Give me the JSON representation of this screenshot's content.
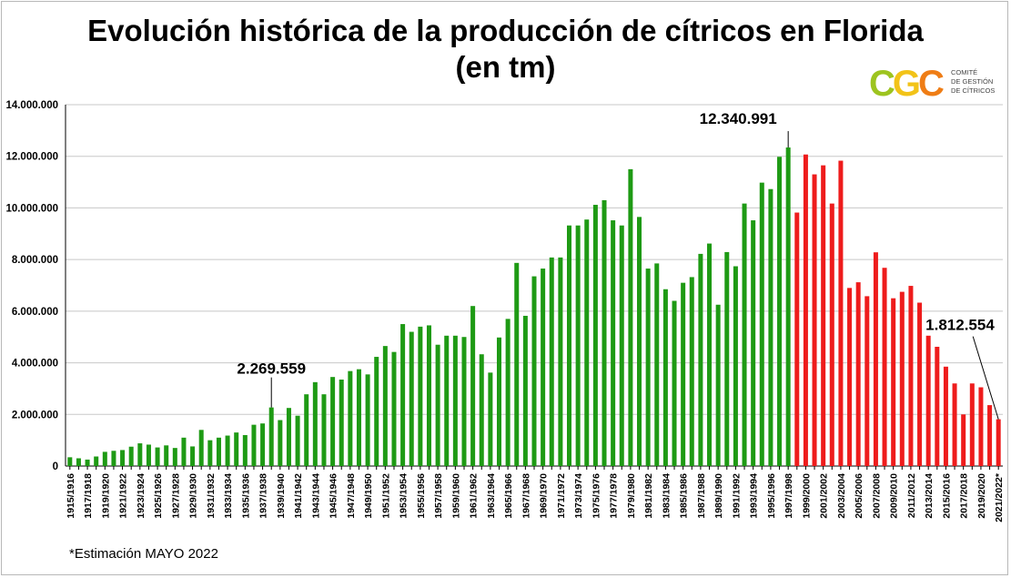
{
  "title_line1": "Evolución histórica de la producción de cítricos en Florida",
  "title_line2": "(en tm)",
  "logo": {
    "mark": [
      "C",
      "G",
      "C"
    ],
    "lines": [
      "COMITÉ",
      "DE GESTIÓN",
      "DE CÍTRICOS"
    ]
  },
  "footnote": "*Estimación MAYO 2022",
  "colors": {
    "green": "#1e9a14",
    "red": "#ee1c1c",
    "grid": "#c8c8c8"
  },
  "chart_data": {
    "type": "bar",
    "title": "Evolución histórica de la producción de cítricos en Florida (en tm)",
    "xlabel": "",
    "ylabel": "",
    "ylim": [
      0,
      14000000
    ],
    "yticks": [
      0,
      2000000,
      4000000,
      6000000,
      8000000,
      10000000,
      12000000,
      14000000
    ],
    "ytick_labels": [
      "0",
      "2.000.000",
      "4.000.000",
      "6.000.000",
      "8.000.000",
      "10.000.000",
      "12.000.000",
      "14.000.000"
    ],
    "grid": true,
    "start_year": 1915,
    "categories": [
      "1915/1916",
      "1916/1917",
      "1917/1918",
      "1918/1919",
      "1919/1920",
      "1920/1921",
      "1921/1922",
      "1922/1923",
      "1923/1924",
      "1924/1925",
      "1925/1926",
      "1926/1927",
      "1927/1928",
      "1928/1929",
      "1929/1930",
      "1930/1931",
      "1931/1932",
      "1932/1933",
      "1933/1934",
      "1934/1935",
      "1935/1936",
      "1936/1937",
      "1937/1938",
      "1938/1939",
      "1939/1940",
      "1940/1941",
      "1941/1942",
      "1942/1943",
      "1943/1944",
      "1944/1945",
      "1945/1946",
      "1946/1947",
      "1947/1948",
      "1948/1949",
      "1949/1950",
      "1950/1951",
      "1951/1952",
      "1952/1953",
      "1953/1954",
      "1954/1955",
      "1955/1956",
      "1956/1957",
      "1957/1958",
      "1958/1959",
      "1959/1960",
      "1960/1961",
      "1961/1962",
      "1962/1963",
      "1963/1964",
      "1964/1965",
      "1965/1966",
      "1966/1967",
      "1967/1968",
      "1968/1969",
      "1969/1970",
      "1970/1971",
      "1971/1972",
      "1972/1973",
      "1973/1974",
      "1974/1975",
      "1975/1976",
      "1976/1977",
      "1977/1978",
      "1978/1979",
      "1979/1980",
      "1980/1981",
      "1981/1982",
      "1982/1983",
      "1983/1984",
      "1984/1985",
      "1985/1986",
      "1986/1987",
      "1987/1988",
      "1988/1989",
      "1989/1990",
      "1990/1991",
      "1991/1992",
      "1992/1993",
      "1993/1994",
      "1994/1995",
      "1995/1996",
      "1996/1997",
      "1997/1998",
      "1998/1999",
      "1999/2000",
      "2000/2001",
      "2001/2002",
      "2002/2003",
      "2003/2004",
      "2004/2005",
      "2005/2006",
      "2006/2007",
      "2007/2008",
      "2008/2009",
      "2009/2010",
      "2010/2011",
      "2011/2012",
      "2012/2013",
      "2013/2014",
      "2014/2015",
      "2015/2016",
      "2016/2017",
      "2017/2018",
      "2018/2019",
      "2019/2020",
      "2020/2021",
      "2021/2022*"
    ],
    "shown_labels": [
      "1915/1916",
      "1917/1918",
      "1919/1920",
      "1921/1922",
      "1923/1924",
      "1925/1926",
      "1927/1928",
      "1929/1930",
      "1931/1932",
      "1933/1934",
      "1935/1936",
      "1937/1938",
      "1939/1940",
      "1941/1942",
      "1943/1944",
      "1945/1946",
      "1947/1948",
      "1949/1950",
      "1951/1952",
      "1953/1954",
      "1955/1956",
      "1957/1958",
      "1959/1960",
      "1961/1962",
      "1963/1964",
      "1965/1966",
      "1967/1968",
      "1969/1970",
      "1971/1972",
      "1973/1974",
      "1975/1976",
      "1977/1978",
      "1979/1980",
      "1981/1982",
      "1983/1984",
      "1985/1986",
      "1987/1988",
      "1989/1990",
      "1991/1992",
      "1993/1994",
      "1995/1996",
      "1997/1998",
      "1999/2000",
      "2001/2002",
      "2003/2004",
      "2005/2006",
      "2007/2008",
      "2009/2010",
      "2011/2012",
      "2013/2014",
      "2015/2016",
      "2017/2018",
      "2019/2020",
      "2021/2022*"
    ],
    "values": [
      340000,
      300000,
      250000,
      370000,
      550000,
      590000,
      620000,
      750000,
      880000,
      830000,
      720000,
      800000,
      700000,
      1100000,
      760000,
      1400000,
      1000000,
      1100000,
      1180000,
      1300000,
      1200000,
      1600000,
      1650000,
      2269559,
      1780000,
      2250000,
      1950000,
      2780000,
      3250000,
      2780000,
      3450000,
      3350000,
      3680000,
      3750000,
      3550000,
      4230000,
      4650000,
      4420000,
      5500000,
      5200000,
      5400000,
      5450000,
      4700000,
      5050000,
      5050000,
      5000000,
      6200000,
      4330000,
      3620000,
      4980000,
      5700000,
      7870000,
      5820000,
      7350000,
      7650000,
      8080000,
      8080000,
      9320000,
      9320000,
      9550000,
      10120000,
      10300000,
      9520000,
      9320000,
      11500000,
      9650000,
      7650000,
      7850000,
      6850000,
      6400000,
      7100000,
      7320000,
      8220000,
      8620000,
      6250000,
      8290000,
      7740000,
      10170000,
      9520000,
      10980000,
      10730000,
      11980000,
      12340991,
      9820000,
      12070000,
      11300000,
      11650000,
      10170000,
      11830000,
      6900000,
      7120000,
      6580000,
      8280000,
      7680000,
      6500000,
      6750000,
      6980000,
      6330000,
      5050000,
      4620000,
      3850000,
      3200000,
      2000000,
      3200000,
      3050000,
      2360000,
      1812554
    ],
    "series": [
      {
        "name": "",
        "color": "#1e9a14",
        "range": [
          0,
          82
        ]
      },
      {
        "name": "",
        "color": "#ee1c1c",
        "range": [
          83,
          106
        ]
      }
    ],
    "annotations": [
      {
        "text": "2.269.559",
        "index": 23
      },
      {
        "text": "12.340.991",
        "index": 82
      },
      {
        "text": "1.812.554",
        "index": 106
      }
    ]
  }
}
